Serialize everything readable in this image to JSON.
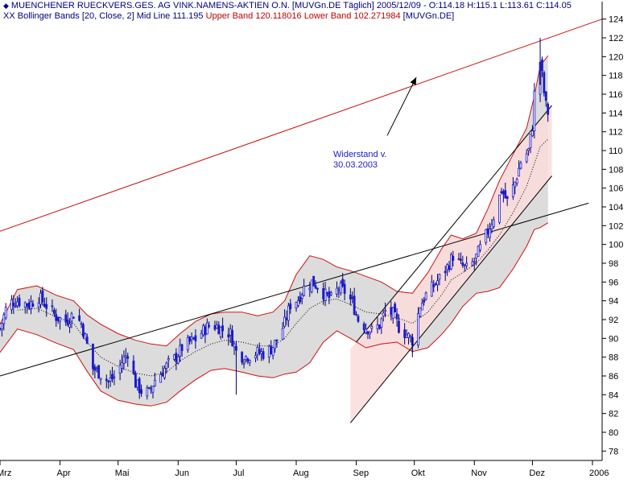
{
  "header": {
    "symbol_icon": "chart-symbol-icon",
    "line1": "MUENCHENER RUECKVERS.GES. AG VINK.NAMENS-AKTIEN O.N. [MUVGn.DE  Täglich] 2005/12/09 - O:114.18 H:115.1 L:113.61 C:114.05",
    "indicator_prefix": "XX",
    "indicator_name": "Bollinger Bands [20, Close, 2] Mid Line 111.195",
    "upper_band": "Upper Band 120.118016",
    "lower_band": "Lower Band 102.271984",
    "symbol_tag": "[MUVGn.DE]"
  },
  "annotation": {
    "line1": "Widerstand v.",
    "line2": "30.03.2003"
  },
  "colors": {
    "candle_up": "#1a1acc",
    "candle_down": "#00006a",
    "band_line": "#d01010",
    "band_fill": "#dcdcdc",
    "channel_fill": "#fbdcdc",
    "resistance": "#cc1010",
    "trendline": "#000000",
    "axis": "#000000"
  },
  "chart_data": {
    "type": "candlestick",
    "title": "MUENCHENER RUECKVERS.GES. AG VINK.NAMENS-AKTIEN O.N.",
    "ylim": [
      77,
      125
    ],
    "y_ticks": [
      78,
      80,
      82,
      84,
      86,
      88,
      90,
      92,
      94,
      96,
      98,
      100,
      102,
      104,
      106,
      108,
      110,
      112,
      114,
      116,
      118,
      120,
      122,
      124
    ],
    "x_range": [
      "2005-03-01",
      "2006-01-06"
    ],
    "x_ticks": [
      {
        "label": "Mrz",
        "date": "2005-03-01"
      },
      {
        "label": "Apr",
        "date": "2005-04-01"
      },
      {
        "label": "Mai",
        "date": "2005-05-01"
      },
      {
        "label": "Jun",
        "date": "2005-06-01"
      },
      {
        "label": "Jul",
        "date": "2005-07-01"
      },
      {
        "label": "Aug",
        "date": "2005-08-01"
      },
      {
        "label": "Sep",
        "date": "2005-09-01"
      },
      {
        "label": "Okt",
        "date": "2005-10-01"
      },
      {
        "label": "Nov",
        "date": "2005-11-01"
      },
      {
        "label": "Dez",
        "date": "2005-12-01"
      },
      {
        "label": "2006",
        "date": "2006-01-01"
      }
    ],
    "close_path": [
      [
        "2005-03-01",
        91.0
      ],
      [
        "2005-03-05",
        93.8
      ],
      [
        "2005-03-10",
        94.0
      ],
      [
        "2005-03-16",
        93.6
      ],
      [
        "2005-03-21",
        94.4
      ],
      [
        "2005-03-25",
        93.5
      ],
      [
        "2005-03-30",
        92.3
      ],
      [
        "2005-04-04",
        91.8
      ],
      [
        "2005-04-08",
        92.6
      ],
      [
        "2005-04-12",
        91.6
      ],
      [
        "2005-04-15",
        89.3
      ],
      [
        "2005-04-18",
        86.8
      ],
      [
        "2005-04-22",
        86.2
      ],
      [
        "2005-04-26",
        85.4
      ],
      [
        "2005-04-29",
        85.9
      ],
      [
        "2005-05-03",
        87.5
      ],
      [
        "2005-05-06",
        88.5
      ],
      [
        "2005-05-10",
        85.2
      ],
      [
        "2005-05-13",
        84.4
      ],
      [
        "2005-05-17",
        84.2
      ],
      [
        "2005-05-20",
        85.6
      ],
      [
        "2005-05-24",
        86.5
      ],
      [
        "2005-05-27",
        87.3
      ],
      [
        "2005-05-31",
        88.0
      ],
      [
        "2005-06-03",
        89.0
      ],
      [
        "2005-06-07",
        89.6
      ],
      [
        "2005-06-10",
        89.9
      ],
      [
        "2005-06-14",
        90.8
      ],
      [
        "2005-06-17",
        91.4
      ],
      [
        "2005-06-21",
        91.3
      ],
      [
        "2005-06-24",
        90.9
      ],
      [
        "2005-06-28",
        90.5
      ],
      [
        "2005-07-01",
        88.6
      ],
      [
        "2005-07-05",
        88.0
      ],
      [
        "2005-07-08",
        88.2
      ],
      [
        "2005-07-12",
        88.5
      ],
      [
        "2005-07-15",
        88.4
      ],
      [
        "2005-07-19",
        88.9
      ],
      [
        "2005-07-22",
        89.8
      ],
      [
        "2005-07-26",
        91.6
      ],
      [
        "2005-07-29",
        93.6
      ],
      [
        "2005-08-02",
        94.2
      ],
      [
        "2005-08-05",
        95.4
      ],
      [
        "2005-08-09",
        96.0
      ],
      [
        "2005-08-12",
        95.6
      ],
      [
        "2005-08-16",
        94.6
      ],
      [
        "2005-08-19",
        94.2
      ],
      [
        "2005-08-23",
        95.4
      ],
      [
        "2005-08-26",
        95.0
      ],
      [
        "2005-08-30",
        93.8
      ],
      [
        "2005-09-02",
        92.0
      ],
      [
        "2005-09-06",
        91.2
      ],
      [
        "2005-09-09",
        90.8
      ],
      [
        "2005-09-13",
        91.4
      ],
      [
        "2005-09-16",
        92.9
      ],
      [
        "2005-09-20",
        92.6
      ],
      [
        "2005-09-23",
        91.2
      ],
      [
        "2005-09-27",
        90.4
      ],
      [
        "2005-09-30",
        89.8
      ],
      [
        "2005-10-04",
        93.5
      ],
      [
        "2005-10-07",
        94.6
      ],
      [
        "2005-10-11",
        95.6
      ],
      [
        "2005-10-14",
        96.4
      ],
      [
        "2005-10-18",
        97.6
      ],
      [
        "2005-10-21",
        98.8
      ],
      [
        "2005-10-25",
        97.8
      ],
      [
        "2005-10-28",
        97.4
      ],
      [
        "2005-11-01",
        98.2
      ],
      [
        "2005-11-04",
        99.6
      ],
      [
        "2005-11-08",
        101.4
      ],
      [
        "2005-11-11",
        103.0
      ],
      [
        "2005-11-15",
        105.8
      ],
      [
        "2005-11-18",
        104.6
      ],
      [
        "2005-11-22",
        106.6
      ],
      [
        "2005-11-25",
        108.8
      ],
      [
        "2005-11-29",
        110.0
      ],
      [
        "2005-12-01",
        112.6
      ],
      [
        "2005-12-02",
        116.0
      ],
      [
        "2005-12-05",
        119.5
      ],
      [
        "2005-12-06",
        118.0
      ],
      [
        "2005-12-07",
        116.2
      ],
      [
        "2005-12-08",
        114.8
      ],
      [
        "2005-12-09",
        114.05
      ]
    ],
    "bollinger_upper": [
      [
        "2005-03-01",
        91.5
      ],
      [
        "2005-03-10",
        95.2
      ],
      [
        "2005-03-20",
        95.6
      ],
      [
        "2005-03-30",
        94.6
      ],
      [
        "2005-04-08",
        94.0
      ],
      [
        "2005-04-15",
        92.5
      ],
      [
        "2005-04-22",
        91.5
      ],
      [
        "2005-05-01",
        90.5
      ],
      [
        "2005-05-10",
        89.8
      ],
      [
        "2005-05-18",
        89.4
      ],
      [
        "2005-05-26",
        89.2
      ],
      [
        "2005-06-02",
        90.5
      ],
      [
        "2005-06-10",
        91.8
      ],
      [
        "2005-06-18",
        92.6
      ],
      [
        "2005-06-25",
        92.8
      ],
      [
        "2005-07-04",
        92.8
      ],
      [
        "2005-07-12",
        92.4
      ],
      [
        "2005-07-20",
        92.8
      ],
      [
        "2005-07-26",
        94.0
      ],
      [
        "2005-08-01",
        96.8
      ],
      [
        "2005-08-08",
        98.8
      ],
      [
        "2005-08-15",
        98.4
      ],
      [
        "2005-08-22",
        97.6
      ],
      [
        "2005-08-29",
        97.2
      ],
      [
        "2005-09-06",
        96.6
      ],
      [
        "2005-09-14",
        96.0
      ],
      [
        "2005-09-22",
        95.0
      ],
      [
        "2005-09-30",
        94.8
      ],
      [
        "2005-10-08",
        97.0
      ],
      [
        "2005-10-15",
        99.5
      ],
      [
        "2005-10-20",
        101.0
      ],
      [
        "2005-10-26",
        100.6
      ],
      [
        "2005-11-02",
        101.2
      ],
      [
        "2005-11-08",
        103.8
      ],
      [
        "2005-11-14",
        106.8
      ],
      [
        "2005-11-21",
        109.6
      ],
      [
        "2005-11-28",
        112.4
      ],
      [
        "2005-12-02",
        115.8
      ],
      [
        "2005-12-05",
        119.0
      ],
      [
        "2005-12-09",
        120.1
      ]
    ],
    "bollinger_lower": [
      [
        "2005-03-01",
        88.5
      ],
      [
        "2005-03-10",
        91.0
      ],
      [
        "2005-03-20",
        90.4
      ],
      [
        "2005-03-30",
        89.5
      ],
      [
        "2005-04-08",
        88.8
      ],
      [
        "2005-04-15",
        86.5
      ],
      [
        "2005-04-22",
        84.4
      ],
      [
        "2005-05-01",
        83.4
      ],
      [
        "2005-05-10",
        83.0
      ],
      [
        "2005-05-18",
        82.8
      ],
      [
        "2005-05-26",
        83.2
      ],
      [
        "2005-06-02",
        84.4
      ],
      [
        "2005-06-10",
        85.6
      ],
      [
        "2005-06-18",
        86.6
      ],
      [
        "2005-06-25",
        86.8
      ],
      [
        "2005-07-04",
        86.4
      ],
      [
        "2005-07-12",
        86.0
      ],
      [
        "2005-07-20",
        85.8
      ],
      [
        "2005-07-26",
        86.2
      ],
      [
        "2005-08-01",
        86.4
      ],
      [
        "2005-08-08",
        87.4
      ],
      [
        "2005-08-15",
        89.6
      ],
      [
        "2005-08-22",
        90.8
      ],
      [
        "2005-08-29",
        90.0
      ],
      [
        "2005-09-06",
        89.0
      ],
      [
        "2005-09-14",
        89.4
      ],
      [
        "2005-09-22",
        89.6
      ],
      [
        "2005-09-30",
        88.6
      ],
      [
        "2005-10-08",
        89.0
      ],
      [
        "2005-10-15",
        90.4
      ],
      [
        "2005-10-20",
        91.6
      ],
      [
        "2005-10-26",
        93.4
      ],
      [
        "2005-11-02",
        94.8
      ],
      [
        "2005-11-08",
        95.0
      ],
      [
        "2005-11-14",
        95.4
      ],
      [
        "2005-11-21",
        97.4
      ],
      [
        "2005-11-28",
        99.8
      ],
      [
        "2005-12-02",
        101.6
      ],
      [
        "2005-12-05",
        101.8
      ],
      [
        "2005-12-09",
        102.3
      ]
    ],
    "bollinger_mid": [
      [
        "2005-03-10",
        93.0
      ],
      [
        "2005-03-20",
        93.2
      ],
      [
        "2005-03-30",
        92.3
      ],
      [
        "2005-04-08",
        91.6
      ],
      [
        "2005-04-15",
        89.6
      ],
      [
        "2005-04-22",
        88.0
      ],
      [
        "2005-05-01",
        87.0
      ],
      [
        "2005-05-10",
        86.3
      ],
      [
        "2005-05-18",
        86.0
      ],
      [
        "2005-05-26",
        86.4
      ],
      [
        "2005-06-02",
        87.6
      ],
      [
        "2005-06-10",
        88.6
      ],
      [
        "2005-06-18",
        89.4
      ],
      [
        "2005-06-25",
        89.8
      ],
      [
        "2005-07-04",
        89.6
      ],
      [
        "2005-07-12",
        89.2
      ],
      [
        "2005-07-20",
        89.2
      ],
      [
        "2005-07-26",
        90.0
      ],
      [
        "2005-08-01",
        91.6
      ],
      [
        "2005-08-08",
        93.2
      ],
      [
        "2005-08-15",
        94.0
      ],
      [
        "2005-08-22",
        94.2
      ],
      [
        "2005-08-29",
        93.6
      ],
      [
        "2005-09-06",
        92.8
      ],
      [
        "2005-09-14",
        92.6
      ],
      [
        "2005-09-22",
        92.2
      ],
      [
        "2005-09-30",
        91.6
      ],
      [
        "2005-10-08",
        92.8
      ],
      [
        "2005-10-15",
        94.6
      ],
      [
        "2005-10-20",
        96.2
      ],
      [
        "2005-10-26",
        97.0
      ],
      [
        "2005-11-02",
        98.0
      ],
      [
        "2005-11-08",
        99.4
      ],
      [
        "2005-11-14",
        101.0
      ],
      [
        "2005-11-21",
        103.4
      ],
      [
        "2005-11-28",
        106.2
      ],
      [
        "2005-12-02",
        108.6
      ],
      [
        "2005-12-05",
        110.4
      ],
      [
        "2005-12-09",
        111.2
      ]
    ],
    "trendlines": [
      {
        "name": "resistance",
        "from": [
          "2005-03-01",
          101.4
        ],
        "to": [
          "2006-01-06",
          124.0
        ]
      },
      {
        "name": "long-support",
        "from": [
          "2005-03-01",
          86.0
        ],
        "to": [
          "2005-12-30",
          104.4
        ]
      },
      {
        "name": "channel-upper",
        "from": [
          "2005-09-01",
          89.6
        ],
        "to": [
          "2005-12-11",
          114.8
        ]
      },
      {
        "name": "channel-lower",
        "from": [
          "2005-08-29",
          81.0
        ],
        "to": [
          "2005-12-11",
          107.3
        ]
      }
    ],
    "channel_fill": {
      "from": "2005-08-29",
      "to": "2005-12-11"
    },
    "annotation_arrow": {
      "from": [
        "2005-09-17",
        111.6
      ],
      "to": [
        "2005-10-02",
        117.8
      ]
    }
  }
}
